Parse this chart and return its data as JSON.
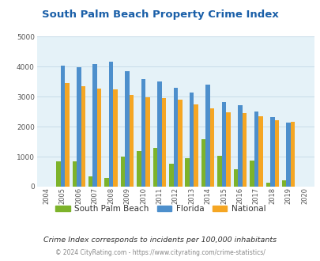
{
  "title": "South Palm Beach Property Crime Index",
  "years": [
    2004,
    2005,
    2006,
    2007,
    2008,
    2009,
    2010,
    2011,
    2012,
    2013,
    2014,
    2015,
    2016,
    2017,
    2018,
    2019,
    2020
  ],
  "south_palm_beach": [
    0,
    850,
    850,
    350,
    280,
    1000,
    1180,
    1290,
    760,
    960,
    1590,
    1020,
    570,
    870,
    130,
    220,
    0
  ],
  "florida": [
    0,
    4030,
    3990,
    4090,
    4160,
    3840,
    3580,
    3500,
    3300,
    3130,
    3410,
    2820,
    2700,
    2510,
    2310,
    2130,
    0
  ],
  "national": [
    0,
    3450,
    3340,
    3260,
    3230,
    3060,
    2970,
    2960,
    2900,
    2750,
    2610,
    2480,
    2450,
    2350,
    2210,
    2150,
    0
  ],
  "ylim": [
    0,
    5000
  ],
  "yticks": [
    0,
    1000,
    2000,
    3000,
    4000,
    5000
  ],
  "bar_width": 0.27,
  "color_spb": "#7db32b",
  "color_fl": "#4d8fcc",
  "color_nat": "#f5a623",
  "bg_color": "#e5f2f8",
  "title_color": "#1a5fa8",
  "grid_color": "#c8dce8",
  "subtitle": "Crime Index corresponds to incidents per 100,000 inhabitants",
  "footer": "© 2024 CityRating.com - https://www.cityrating.com/crime-statistics/",
  "legend_labels": [
    "South Palm Beach",
    "Florida",
    "National"
  ]
}
